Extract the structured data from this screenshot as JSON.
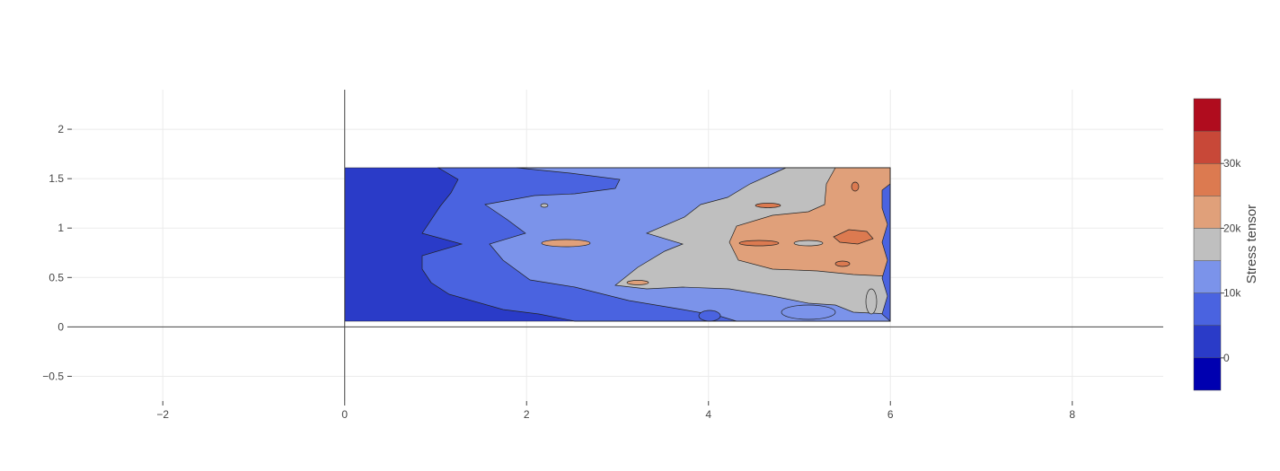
{
  "chart_data": {
    "type": "contour",
    "x_range": [
      -3,
      9
    ],
    "y_range": [
      -0.75,
      2.4
    ],
    "x_ticks": [
      -2,
      0,
      2,
      4,
      6,
      8
    ],
    "x_tick_labels": [
      "−2",
      "0",
      "2",
      "4",
      "6",
      "8"
    ],
    "y_ticks": [
      -0.5,
      0,
      0.5,
      1,
      1.5,
      2
    ],
    "y_tick_labels": [
      "−0.5",
      "0",
      "0.5",
      "1",
      "1.5",
      "2"
    ],
    "grid": true,
    "domain": {
      "x": [
        0,
        6
      ],
      "y": [
        0,
        1.6
      ]
    },
    "colorbar": {
      "title": "Stress tensor",
      "range": [
        -5000,
        40000
      ],
      "level_step": 5000,
      "tick_values": [
        0,
        10000,
        20000,
        30000
      ],
      "tick_labels": [
        "0",
        "10k",
        "20k",
        "30k"
      ],
      "colors": [
        "#0000b0",
        "#2a3bc8",
        "#4a63e0",
        "#7b93ea",
        "#bfbfbf",
        "#e0a07a",
        "#dc7a50",
        "#c84838",
        "#b00c1e"
      ]
    },
    "contour_bands": [
      {
        "level": 2500,
        "x_at_mid_height": 1.0
      },
      {
        "level": 7500,
        "x_at_mid_height": 1.6
      },
      {
        "level": 12500,
        "x_at_mid_height": 3.4
      },
      {
        "level": 17500,
        "x_at_mid_height": 4.2
      },
      {
        "level": 22500,
        "x_at_mid_height": 5.3
      }
    ]
  }
}
